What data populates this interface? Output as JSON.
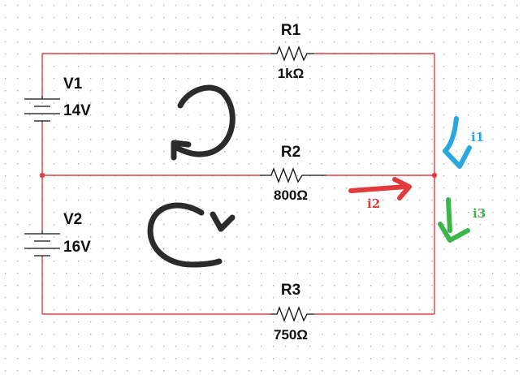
{
  "circuit": {
    "resistors": [
      {
        "name": "R1",
        "value": "1kΩ"
      },
      {
        "name": "R2",
        "value": "800Ω"
      },
      {
        "name": "R3",
        "value": "750Ω"
      }
    ],
    "sources": [
      {
        "name": "V1",
        "value": "14V"
      },
      {
        "name": "V2",
        "value": "16V"
      }
    ],
    "currents": [
      {
        "name": "i1",
        "color": "#29a8e0"
      },
      {
        "name": "i2",
        "color": "#e23a3a"
      },
      {
        "name": "i3",
        "color": "#3cb54a"
      }
    ],
    "wire_color": "#e04040",
    "loop_stroke_color": "#2b2b2b"
  }
}
